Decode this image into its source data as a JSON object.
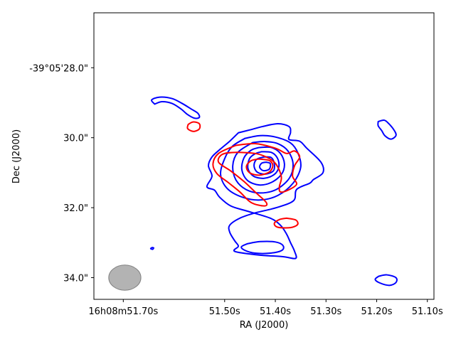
{
  "chart_data": {
    "type": "contour",
    "title": "",
    "xlabel": "RA (J2000)",
    "ylabel": "Dec (J2000)",
    "x_ticks": [
      {
        "label": "16h08m51.70s",
        "value": 51.7
      },
      {
        "label": "51.50s",
        "value": 51.5
      },
      {
        "label": "51.40s",
        "value": 51.4
      },
      {
        "label": "51.30s",
        "value": 51.3
      },
      {
        "label": "51.20s",
        "value": 51.2
      },
      {
        "label": "51.10s",
        "value": 51.1
      }
    ],
    "y_ticks": [
      {
        "label": "-39°05'28.0\"",
        "value": 28.0
      },
      {
        "label": "30.0\"",
        "value": 30.0
      },
      {
        "label": "32.0\"",
        "value": 32.0
      },
      {
        "label": "34.0\"",
        "value": 34.0
      }
    ],
    "xlim_ra_seconds": [
      51.758,
      51.087
    ],
    "ylim_dec_arcsec": [
      26.43,
      34.62
    ],
    "beam": {
      "ra_center": 51.697,
      "dec_center": 34.0,
      "width_arcsec": 0.92,
      "height_arcsec": 0.72,
      "color": "#b3b3b3"
    },
    "series": [
      {
        "color": "#0000ff",
        "contours": [
          [
            [
              51.638,
              29.04
            ],
            [
              51.644,
              28.92
            ],
            [
              51.628,
              28.84
            ],
            [
              51.604,
              28.88
            ],
            [
              51.584,
              29.02
            ],
            [
              51.566,
              29.18
            ],
            [
              51.553,
              29.3
            ],
            [
              51.55,
              29.42
            ],
            [
              51.56,
              29.44
            ],
            [
              51.574,
              29.33
            ],
            [
              51.586,
              29.18
            ],
            [
              51.604,
              29.02
            ],
            [
              51.624,
              28.97
            ],
            [
              51.638,
              29.04
            ]
          ],
          [
            [
              51.473,
              29.86
            ],
            [
              51.451,
              29.78
            ],
            [
              51.425,
              29.68
            ],
            [
              51.395,
              29.6
            ],
            [
              51.373,
              29.68
            ],
            [
              51.37,
              29.85
            ],
            [
              51.373,
              30.05
            ],
            [
              51.352,
              30.1
            ],
            [
              51.338,
              30.3
            ],
            [
              51.31,
              30.7
            ],
            [
              51.306,
              31.0
            ],
            [
              51.325,
              31.2
            ],
            [
              51.332,
              31.3
            ],
            [
              51.358,
              31.48
            ],
            [
              51.364,
              31.8
            ],
            [
              51.398,
              32.0
            ],
            [
              51.44,
              32.15
            ],
            [
              51.47,
              32.3
            ],
            [
              51.49,
              32.5
            ],
            [
              51.49,
              32.7
            ],
            [
              51.48,
              32.95
            ],
            [
              51.473,
              33.1
            ],
            [
              51.48,
              33.25
            ],
            [
              51.435,
              33.35
            ],
            [
              51.385,
              33.4
            ],
            [
              51.36,
              33.45
            ],
            [
              51.362,
              33.25
            ],
            [
              51.37,
              33.0
            ],
            [
              51.378,
              32.75
            ],
            [
              51.39,
              32.5
            ],
            [
              51.41,
              32.3
            ],
            [
              51.455,
              32.1
            ],
            [
              51.488,
              31.95
            ],
            [
              51.51,
              31.7
            ],
            [
              51.52,
              31.5
            ],
            [
              51.535,
              31.4
            ],
            [
              51.525,
              31.1
            ],
            [
              51.532,
              30.8
            ],
            [
              51.525,
              30.55
            ],
            [
              51.508,
              30.32
            ],
            [
              51.49,
              30.1
            ],
            [
              51.473,
              29.86
            ]
          ],
          [
            [
              51.46,
              30.02
            ],
            [
              51.43,
              29.94
            ],
            [
              51.4,
              29.98
            ],
            [
              51.37,
              30.15
            ],
            [
              51.355,
              30.45
            ],
            [
              51.35,
              30.85
            ],
            [
              51.365,
              31.3
            ],
            [
              51.395,
              31.65
            ],
            [
              51.43,
              31.78
            ],
            [
              51.465,
              31.7
            ],
            [
              51.495,
              31.45
            ],
            [
              51.508,
              31.05
            ],
            [
              51.5,
              30.6
            ],
            [
              51.485,
              30.25
            ],
            [
              51.46,
              30.02
            ]
          ],
          [
            [
              51.445,
              30.14
            ],
            [
              51.42,
              30.11
            ],
            [
              51.395,
              30.17
            ],
            [
              51.375,
              30.38
            ],
            [
              51.365,
              30.75
            ],
            [
              51.372,
              31.15
            ],
            [
              51.398,
              31.48
            ],
            [
              51.43,
              31.58
            ],
            [
              51.458,
              31.48
            ],
            [
              51.478,
              31.2
            ],
            [
              51.484,
              30.8
            ],
            [
              51.474,
              30.42
            ],
            [
              51.445,
              30.14
            ]
          ],
          [
            [
              51.432,
              30.28
            ],
            [
              51.408,
              30.28
            ],
            [
              51.39,
              30.45
            ],
            [
              51.382,
              30.75
            ],
            [
              51.388,
              31.05
            ],
            [
              51.408,
              31.28
            ],
            [
              51.432,
              31.35
            ],
            [
              51.455,
              31.22
            ],
            [
              51.466,
              30.92
            ],
            [
              51.462,
              30.58
            ],
            [
              51.448,
              30.36
            ],
            [
              51.432,
              30.28
            ]
          ],
          [
            [
              51.427,
              30.4
            ],
            [
              51.408,
              30.42
            ],
            [
              51.396,
              30.58
            ],
            [
              51.393,
              30.83
            ],
            [
              51.402,
              31.05
            ],
            [
              51.422,
              31.16
            ],
            [
              51.443,
              31.1
            ],
            [
              51.454,
              30.88
            ],
            [
              51.451,
              30.6
            ],
            [
              51.44,
              30.46
            ],
            [
              51.427,
              30.4
            ]
          ],
          [
            [
              51.422,
              30.55
            ],
            [
              51.408,
              30.57
            ],
            [
              51.402,
              30.75
            ],
            [
              51.404,
              30.95
            ],
            [
              51.42,
              31.04
            ],
            [
              51.436,
              30.98
            ],
            [
              51.442,
              30.8
            ],
            [
              51.437,
              30.62
            ],
            [
              51.422,
              30.55
            ]
          ],
          [
            [
              51.418,
              30.7
            ],
            [
              51.41,
              30.74
            ],
            [
              51.412,
              30.9
            ],
            [
              51.424,
              30.94
            ],
            [
              51.431,
              30.84
            ],
            [
              51.427,
              30.73
            ],
            [
              51.418,
              30.7
            ]
          ],
          [
            [
              51.455,
              33.03
            ],
            [
              51.43,
              32.97
            ],
            [
              51.4,
              32.98
            ],
            [
              51.385,
              33.08
            ],
            [
              51.387,
              33.22
            ],
            [
              51.41,
              33.3
            ],
            [
              51.44,
              33.3
            ],
            [
              51.46,
              33.22
            ],
            [
              51.467,
              33.12
            ],
            [
              51.455,
              33.03
            ]
          ],
          [
            [
              51.197,
              29.54
            ],
            [
              51.185,
              29.5
            ],
            [
              51.176,
              29.6
            ],
            [
              51.165,
              29.8
            ],
            [
              51.162,
              29.94
            ],
            [
              51.172,
              30.04
            ],
            [
              51.184,
              29.94
            ],
            [
              51.19,
              29.8
            ],
            [
              51.197,
              29.66
            ],
            [
              51.197,
              29.54
            ]
          ],
          [
            [
              51.196,
              33.96
            ],
            [
              51.18,
              33.92
            ],
            [
              51.162,
              34.0
            ],
            [
              51.162,
              34.14
            ],
            [
              51.175,
              34.22
            ],
            [
              51.194,
              34.15
            ],
            [
              51.203,
              34.05
            ],
            [
              51.196,
              33.96
            ]
          ],
          [
            [
              51.64,
              33.15
            ],
            [
              51.643,
              33.14
            ],
            [
              51.646,
              33.17
            ],
            [
              51.642,
              33.19
            ],
            [
              51.64,
              33.15
            ]
          ]
        ]
      },
      {
        "color": "#ff0000",
        "contours": [
          [
            [
              51.572,
              29.62
            ],
            [
              51.562,
              29.55
            ],
            [
              51.55,
              29.6
            ],
            [
              51.55,
              29.75
            ],
            [
              51.562,
              29.82
            ],
            [
              51.573,
              29.74
            ],
            [
              51.572,
              29.62
            ]
          ],
          [
            [
              51.478,
              30.22
            ],
            [
              51.44,
              30.17
            ],
            [
              51.4,
              30.3
            ],
            [
              51.378,
              30.45
            ],
            [
              51.362,
              30.38
            ],
            [
              51.352,
              30.55
            ],
            [
              51.362,
              30.8
            ],
            [
              51.366,
              31.1
            ],
            [
              51.358,
              31.33
            ],
            [
              51.375,
              31.5
            ],
            [
              51.39,
              31.55
            ],
            [
              51.392,
              31.4
            ],
            [
              51.388,
              31.15
            ],
            [
              51.393,
              30.9
            ],
            [
              51.402,
              30.7
            ],
            [
              51.418,
              30.55
            ],
            [
              51.44,
              30.45
            ],
            [
              51.48,
              30.42
            ],
            [
              51.505,
              30.48
            ],
            [
              51.512,
              30.7
            ],
            [
              51.488,
              30.95
            ],
            [
              51.462,
              31.25
            ],
            [
              51.44,
              31.55
            ],
            [
              51.418,
              31.85
            ],
            [
              51.422,
              31.95
            ],
            [
              51.448,
              31.85
            ],
            [
              51.47,
              31.55
            ],
            [
              51.493,
              31.28
            ],
            [
              51.515,
              31.03
            ],
            [
              51.523,
              30.75
            ],
            [
              51.512,
              30.45
            ],
            [
              51.478,
              30.22
            ]
          ],
          [
            [
              51.433,
              30.61
            ],
            [
              51.412,
              30.65
            ],
            [
              51.405,
              30.8
            ],
            [
              51.412,
              30.98
            ],
            [
              51.432,
              31.07
            ],
            [
              51.451,
              31.0
            ],
            [
              51.457,
              30.82
            ],
            [
              51.448,
              30.66
            ],
            [
              51.433,
              30.61
            ]
          ],
          [
            [
              51.378,
              32.3
            ],
            [
              51.36,
              32.35
            ],
            [
              51.356,
              32.48
            ],
            [
              51.37,
              32.57
            ],
            [
              51.395,
              32.56
            ],
            [
              51.402,
              32.45
            ],
            [
              51.392,
              32.34
            ],
            [
              51.378,
              32.3
            ]
          ]
        ]
      }
    ]
  }
}
